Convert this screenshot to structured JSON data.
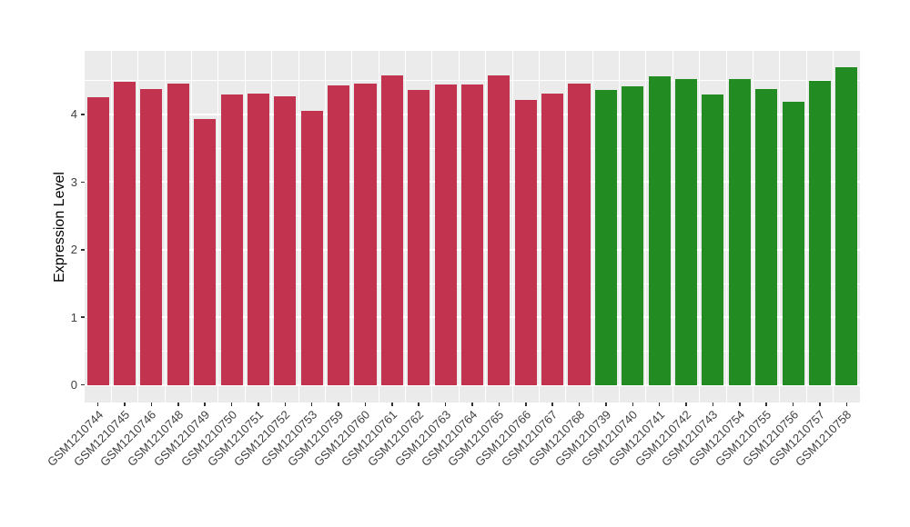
{
  "chart_data": {
    "type": "bar",
    "title": "",
    "xlabel": "",
    "ylabel": "Expression Level",
    "categories": [
      "GSM1210744",
      "GSM1210745",
      "GSM1210746",
      "GSM1210748",
      "GSM1210749",
      "GSM1210750",
      "GSM1210751",
      "GSM1210752",
      "GSM1210753",
      "GSM1210759",
      "GSM1210760",
      "GSM1210761",
      "GSM1210762",
      "GSM1210763",
      "GSM1210764",
      "GSM1210765",
      "GSM1210766",
      "GSM1210767",
      "GSM1210768",
      "GSM1210739",
      "GSM1210740",
      "GSM1210741",
      "GSM1210742",
      "GSM1210743",
      "GSM1210754",
      "GSM1210755",
      "GSM1210756",
      "GSM1210757",
      "GSM1210758"
    ],
    "values": [
      4.26,
      4.48,
      4.37,
      4.45,
      3.93,
      4.29,
      4.31,
      4.27,
      4.05,
      4.43,
      4.45,
      4.58,
      4.36,
      4.44,
      4.44,
      4.58,
      4.21,
      4.31,
      4.46,
      4.36,
      4.41,
      4.56,
      4.53,
      4.29,
      4.52,
      4.38,
      4.19,
      4.5,
      4.7
    ],
    "groups": [
      {
        "name": "red-group",
        "color": "#C23350",
        "start": 0,
        "count": 19
      },
      {
        "name": "green-group",
        "color": "#228B22",
        "start": 19,
        "count": 10
      }
    ],
    "yticks": [
      "0",
      "1",
      "2",
      "3",
      "4"
    ],
    "y_minor_step": 0.5,
    "ylim": [
      -0.26,
      4.94
    ],
    "grid": true,
    "legend": "none",
    "colors": {
      "panel_bg": "#EBEBEB",
      "grid": "#FFFFFF",
      "axis_text": "#404040",
      "axis_title": "#000000",
      "tick_mark": "#333333",
      "figure_bg": "#FFFFFF"
    }
  }
}
